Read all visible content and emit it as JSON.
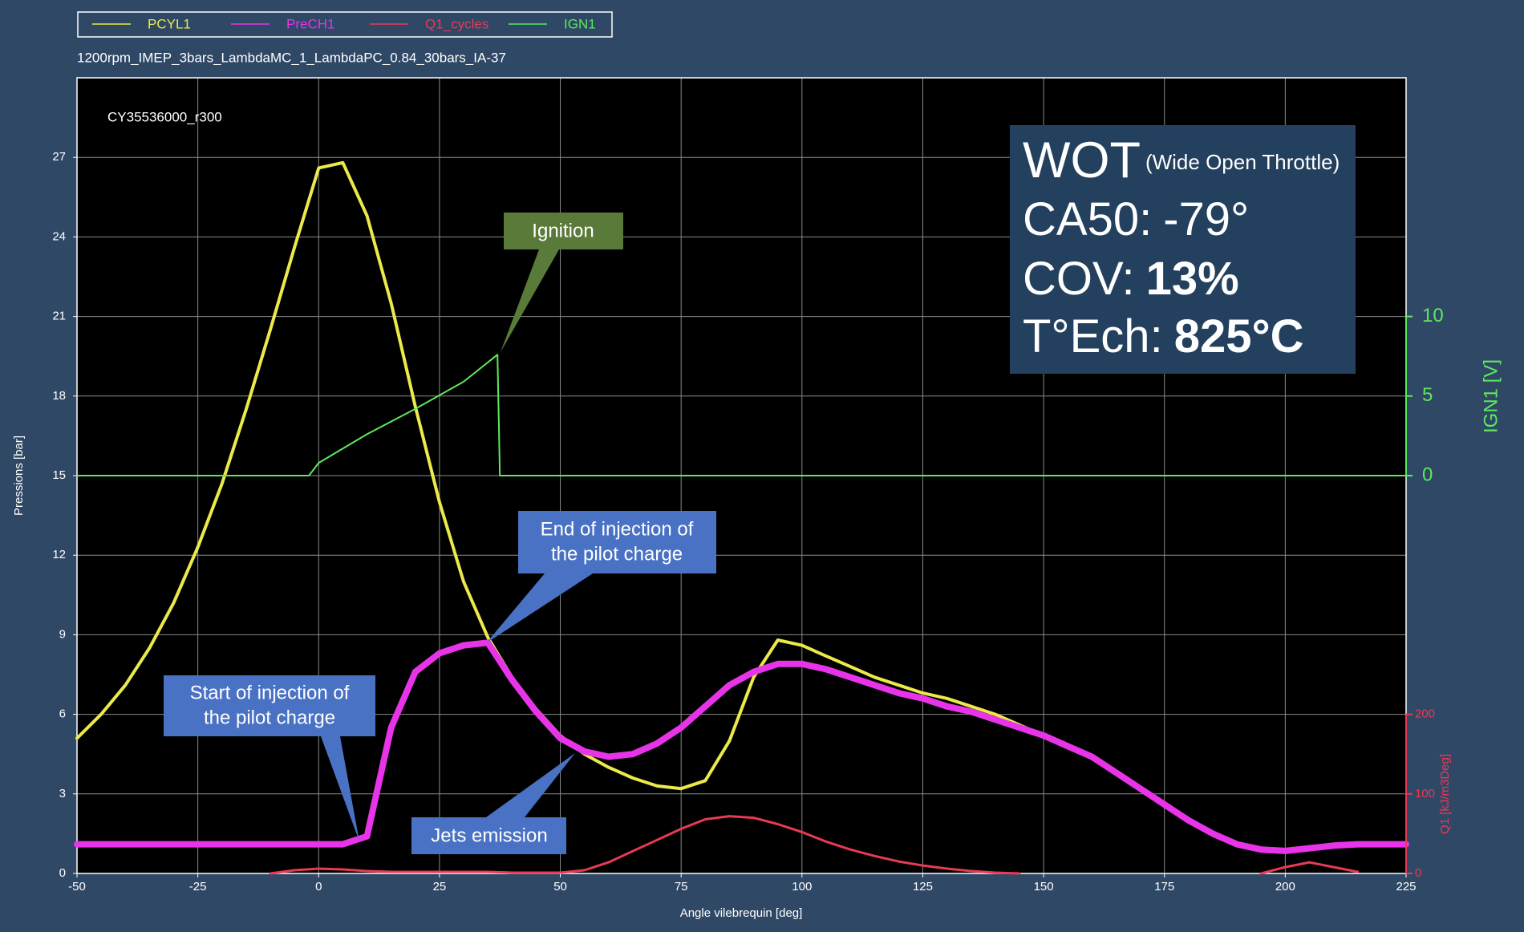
{
  "chart_data": {
    "type": "line",
    "subtitle": "1200rpm_IMEP_3bars_LambdaMC_1_LambdaPC_0.84_30bars_IA-37",
    "cycle_label": "CY35536000_r300",
    "x_label": "Angle vilebrequin [deg]",
    "y_label": "Pressions [bar]",
    "y2_label": "IGN1 [V]",
    "y3_label": "Q1 [kJ/m3Deg]",
    "x": [
      -50,
      -45,
      -40,
      -35,
      -30,
      -25,
      -20,
      -15,
      -10,
      -5,
      0,
      5,
      10,
      15,
      20,
      25,
      30,
      35,
      40,
      45,
      50,
      55,
      60,
      65,
      70,
      75,
      80,
      85,
      90,
      95,
      100,
      105,
      110,
      115,
      120,
      125,
      130,
      135,
      140,
      145,
      150,
      155,
      160,
      165,
      170,
      175,
      180,
      185,
      190,
      195,
      200,
      205,
      210,
      215,
      220,
      225
    ],
    "xlim": [
      -50,
      225
    ],
    "xticks": [
      -50,
      -25,
      0,
      25,
      50,
      75,
      100,
      125,
      150,
      175,
      200,
      225
    ],
    "ylim": [
      0,
      30
    ],
    "yticks": [
      0,
      3,
      6,
      9,
      12,
      15,
      18,
      21,
      24,
      27
    ],
    "y2lim": [
      -25,
      25
    ],
    "y2ticks": [
      0,
      5,
      10
    ],
    "y3lim": [
      0,
      1000
    ],
    "y3ticks": [
      0,
      100,
      200
    ],
    "grid": true,
    "series": [
      {
        "name": "PCYL1",
        "color": "#ecea4a",
        "values": [
          5.1,
          6.0,
          7.1,
          8.5,
          10.2,
          12.3,
          14.7,
          17.5,
          20.5,
          23.6,
          26.6,
          26.8,
          24.8,
          21.5,
          17.6,
          14.0,
          11.0,
          8.9,
          7.4,
          6.2,
          5.2,
          4.5,
          4.0,
          3.6,
          3.3,
          3.2,
          3.5,
          5.0,
          7.4,
          8.8,
          8.6,
          8.2,
          7.8,
          7.4,
          7.1,
          6.8,
          6.6,
          6.3,
          6.0,
          5.6,
          5.2,
          4.8,
          4.4,
          3.8,
          3.2,
          2.6,
          2.0,
          1.5,
          1.1,
          0.9,
          0.85,
          0.9,
          1.0,
          1.1,
          1.1,
          1.1
        ]
      },
      {
        "name": "PreCH1",
        "color": "#e834e8",
        "values": [
          1.1,
          1.1,
          1.1,
          1.1,
          1.1,
          1.1,
          1.1,
          1.1,
          1.1,
          1.1,
          1.1,
          1.1,
          1.4,
          5.5,
          7.6,
          8.3,
          8.6,
          8.7,
          7.3,
          6.1,
          5.1,
          4.6,
          4.4,
          4.5,
          4.9,
          5.5,
          6.3,
          7.1,
          7.6,
          7.9,
          7.9,
          7.7,
          7.4,
          7.1,
          6.8,
          6.6,
          6.3,
          6.1,
          5.8,
          5.5,
          5.2,
          4.8,
          4.4,
          3.8,
          3.2,
          2.6,
          2.0,
          1.5,
          1.1,
          0.9,
          0.85,
          0.95,
          1.05,
          1.1,
          1.1,
          1.1
        ]
      },
      {
        "name": "Q1_cycles",
        "color": "#e83a55",
        "axis": "y3",
        "values": [
          null,
          null,
          null,
          null,
          null,
          null,
          null,
          null,
          0,
          4,
          6,
          5,
          3,
          2,
          2,
          2,
          2,
          2,
          1,
          1,
          1,
          4,
          14,
          28,
          42,
          56,
          68,
          72,
          70,
          62,
          52,
          40,
          30,
          22,
          15,
          10,
          6,
          3,
          1,
          0,
          null,
          null,
          null,
          null,
          null,
          null,
          null,
          null,
          null,
          0,
          8,
          14,
          8,
          2,
          null,
          null
        ]
      },
      {
        "name": "IGN1",
        "color": "#5ee85e",
        "axis": "y2",
        "x": [
          -50,
          -2,
          0,
          10,
          20,
          30,
          37,
          37.5,
          225
        ],
        "values": [
          0,
          0,
          0.8,
          2.6,
          4.2,
          5.9,
          7.6,
          0,
          0
        ]
      }
    ],
    "annotations": {
      "ignition": "Ignition",
      "end_injection": [
        "End of injection of",
        "the pilot charge"
      ],
      "start_injection": [
        "Start of injection of",
        "the pilot charge"
      ],
      "jets": "Jets emission"
    },
    "info_box": {
      "wot": "WOT",
      "wot_note": "(Wide Open Throttle)",
      "ca50_label": "CA50:",
      "ca50_value": "-79°",
      "cov_label": "COV:",
      "cov_value": "13%",
      "tech_label": "T°Ech:",
      "tech_value": "825°C"
    }
  }
}
